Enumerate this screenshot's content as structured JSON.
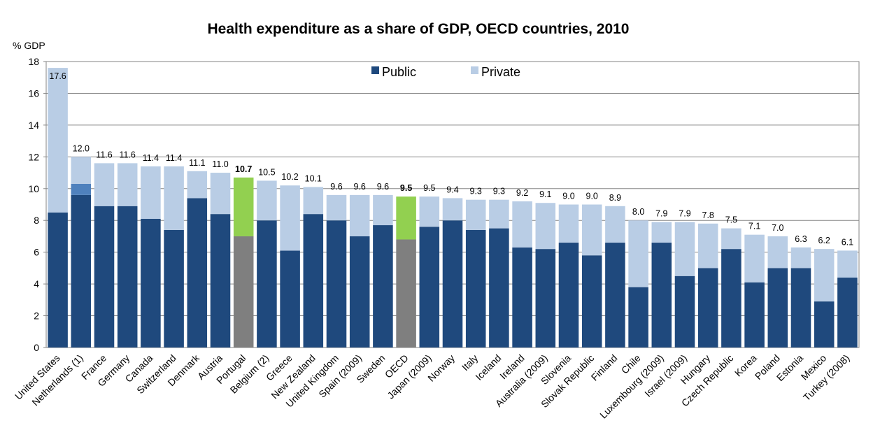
{
  "chart_data": {
    "type": "bar",
    "stacked": true,
    "title": "Health expenditure as a share of GDP, OECD countries, 2010",
    "ylabel": "% GDP",
    "xlabel": "",
    "ylim": [
      0,
      18
    ],
    "yticks": [
      0,
      2,
      4,
      6,
      8,
      10,
      12,
      14,
      16,
      18
    ],
    "grid": true,
    "legend_position": "top-center",
    "categories": [
      "United States",
      "Netherlands (1)",
      "France",
      "Germany",
      "Canada",
      "Switzerland",
      "Denmark",
      "Austria",
      "Portugal",
      "Belgium (2)",
      "Greece",
      "New Zealand",
      "United Kingdom",
      "Spain (2009)",
      "Sweden",
      "OECD",
      "Japan (2009)",
      "Norway",
      "Italy",
      "Iceland",
      "Ireland",
      "Australia (2009)",
      "Slovenia",
      "Slovak Republic",
      "Finland",
      "Chile",
      "Luxembourg (2009)",
      "Israel (2009)",
      "Hungary",
      "Czech Republic",
      "Korea",
      "Poland",
      "Estonia",
      "Mexico",
      "Turkey (2008)"
    ],
    "totals": [
      "17.6",
      "12.0",
      "11.6",
      "11.6",
      "11.4",
      "11.4",
      "11.1",
      "11.0",
      "10.7",
      "10.5",
      "10.2",
      "10.1",
      "9.6",
      "9.6",
      "9.6",
      "9.5",
      "9.5",
      "9.4",
      "9.3",
      "9.3",
      "9.2",
      "9.1",
      "9.0",
      "9.0",
      "8.9",
      "8.0",
      "7.9",
      "7.9",
      "7.8",
      "7.5",
      "7.1",
      "7.0",
      "6.3",
      "6.2",
      "6.1"
    ],
    "bold_labels": [
      "Portugal",
      "OECD"
    ],
    "series": [
      {
        "name": "Public",
        "color": "#1f497d",
        "values": [
          8.5,
          9.6,
          8.9,
          8.9,
          8.1,
          7.4,
          9.4,
          8.4,
          7.0,
          8.0,
          6.1,
          8.4,
          8.0,
          7.0,
          7.7,
          6.8,
          7.6,
          8.0,
          7.4,
          7.5,
          6.3,
          6.2,
          6.6,
          5.8,
          6.6,
          3.8,
          6.6,
          4.5,
          5.0,
          6.2,
          4.1,
          5.0,
          5.0,
          2.9,
          4.4
        ]
      },
      {
        "name": "Private",
        "color": "#b9cde5",
        "values": [
          9.1,
          2.4,
          2.7,
          2.7,
          3.3,
          4.0,
          1.7,
          2.6,
          3.7,
          2.5,
          4.1,
          1.7,
          1.6,
          2.6,
          1.9,
          2.7,
          1.9,
          1.4,
          1.9,
          1.8,
          2.9,
          2.9,
          2.4,
          3.2,
          2.3,
          4.2,
          1.3,
          3.4,
          2.8,
          1.3,
          3.0,
          2.0,
          1.3,
          3.3,
          1.7
        ]
      }
    ],
    "highlight_colors": {
      "public": "#7f7f7f",
      "private": "#92d050"
    },
    "netherlands_segment": {
      "value": 0.7,
      "color": "#4f81bd"
    }
  }
}
